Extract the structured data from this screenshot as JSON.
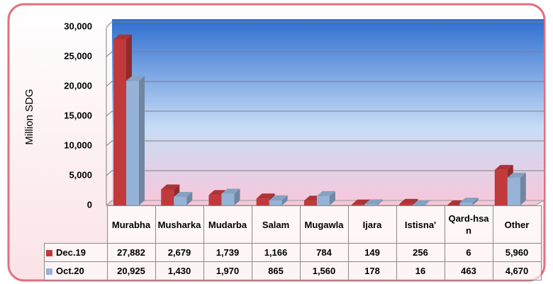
{
  "chart_data": {
    "type": "bar3d",
    "y_label": "Million SDG",
    "categories": [
      "Murabha",
      "Musharka",
      "Mudarba",
      "Salam",
      "Mugawla",
      "Ijara",
      "Istisna'",
      "Qard-hsan",
      "Other"
    ],
    "series": [
      {
        "name": "Dec.19",
        "color": "#c0393b",
        "values": [
          27882,
          2679,
          1739,
          1166,
          784,
          149,
          256,
          6,
          5960
        ],
        "value_labels": [
          "27,882",
          "2,679",
          "1,739",
          "1,166",
          "784",
          "149",
          "256",
          "6",
          "5,960"
        ]
      },
      {
        "name": "Oct.20",
        "color": "#95b3d7",
        "values": [
          20925,
          1430,
          1970,
          865,
          1560,
          178,
          16,
          463,
          4670
        ],
        "value_labels": [
          "20,925",
          "1,430",
          "1,970",
          "865",
          "1,560",
          "178",
          "16",
          "463",
          "4,670"
        ]
      }
    ],
    "ylim": [
      0,
      30000
    ],
    "yticks": [
      0,
      {
        "value": 5000,
        "label": "5,000"
      },
      {
        "value": 10000,
        "label": "10,000"
      },
      {
        "value": 15000,
        "label": "15,000"
      },
      {
        "value": 20000,
        "label": "20,000"
      },
      {
        "value": 25000,
        "label": "25,000"
      },
      {
        "value": 30000,
        "label": "30,000"
      }
    ],
    "grid": true
  }
}
